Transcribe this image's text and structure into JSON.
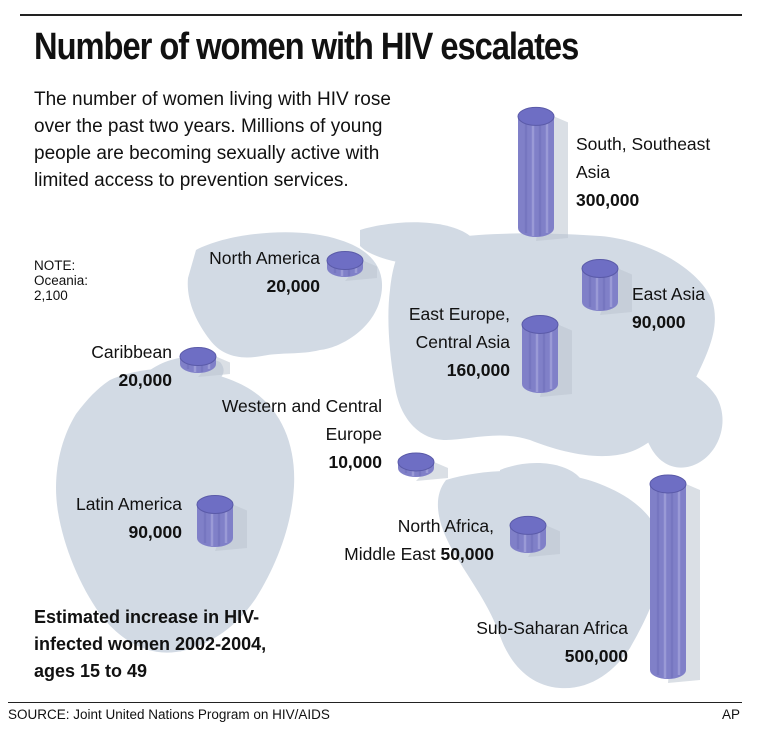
{
  "title": "Number of women with HIV escalates",
  "intro": [
    "The number of women living with HIV rose",
    "over the past two years. Millions of young",
    "people are becoming sexually active with",
    "limited access to prevention services."
  ],
  "note": [
    "NOTE:",
    "Oceania:",
    "2,100"
  ],
  "caption": [
    "Estimated increase in HIV-",
    "infected women 2002-2004,",
    "ages 15 to 49"
  ],
  "source": "SOURCE: Joint United Nations Program on HIV/AIDS",
  "credit": "AP",
  "colors": {
    "cylinder": "#8080c8",
    "cylinder_top": "#6e6ec4",
    "map": "#d2dae4"
  },
  "chart_data": {
    "type": "bar",
    "title": "Number of women with HIV escalates",
    "subtitle": "Estimated increase in HIV-infected women 2002-2004, ages 15 to 49",
    "unit": "women",
    "categories": [
      "South, Southeast Asia",
      "North America",
      "East Asia",
      "East Europe, Central Asia",
      "Caribbean",
      "Western and Central Europe",
      "Latin America",
      "North Africa, Middle East",
      "Sub-Saharan Africa",
      "Oceania"
    ],
    "values": [
      300000,
      20000,
      90000,
      160000,
      20000,
      10000,
      90000,
      50000,
      500000,
      2100
    ],
    "display_values": [
      "300,000",
      "20,000",
      "90,000",
      "160,000",
      "20,000",
      "10,000",
      "90,000",
      "50,000",
      "500,000",
      "2,100"
    ]
  }
}
